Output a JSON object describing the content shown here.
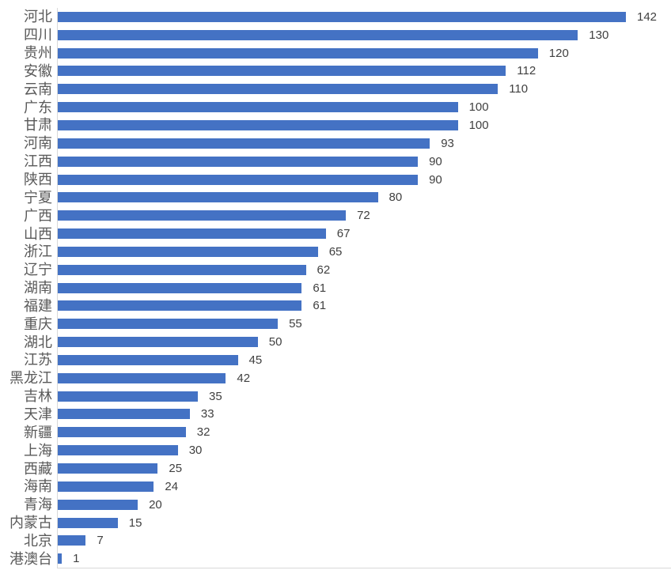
{
  "chart_data": {
    "type": "bar",
    "orientation": "horizontal",
    "title": "",
    "xlabel": "",
    "ylabel": "",
    "categories": [
      "河北",
      "四川",
      "贵州",
      "安徽",
      "云南",
      "广东",
      "甘肃",
      "河南",
      "江西",
      "陕西",
      "宁夏",
      "广西",
      "山西",
      "浙江",
      "辽宁",
      "湖南",
      "福建",
      "重庆",
      "湖北",
      "江苏",
      "黑龙江",
      "吉林",
      "天津",
      "新疆",
      "上海",
      "西藏",
      "海南",
      "青海",
      "内蒙古",
      "北京",
      "港澳台"
    ],
    "values": [
      142,
      130,
      120,
      112,
      110,
      100,
      100,
      93,
      90,
      90,
      80,
      72,
      67,
      65,
      62,
      61,
      61,
      55,
      50,
      45,
      42,
      35,
      33,
      32,
      30,
      25,
      24,
      20,
      15,
      7,
      1
    ],
    "xlim": [
      0,
      153
    ],
    "grid": false,
    "legend": false,
    "data_labels": true,
    "colors": {
      "bar": "#4472c4",
      "axis_line": "#d9d9d9",
      "category_label": "#595959",
      "value_label": "#404040",
      "background": "#ffffff"
    }
  }
}
